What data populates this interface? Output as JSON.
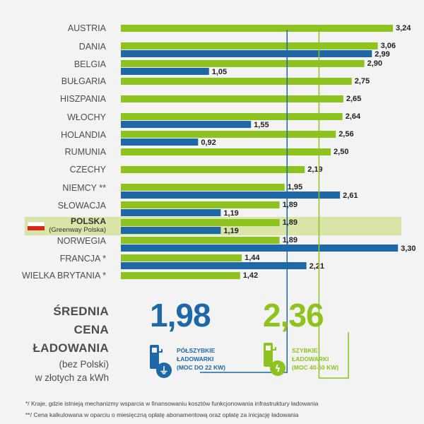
{
  "colors": {
    "fast": "#8dc21f",
    "semi": "#1f68a8",
    "highlight": "#d8e5a6",
    "background": "#f3f3f3",
    "text": "#4d4d4d"
  },
  "chart_data": {
    "type": "bar",
    "orientation": "horizontal",
    "title": "",
    "xlabel": "",
    "ylabel": "",
    "xlim": [
      0,
      3.4
    ],
    "grid": false,
    "legend": "bottom",
    "value_format": "comma-decimal",
    "categories": [
      "AUSTRIA",
      "DANIA",
      "BELGIA",
      "BUŁGARIA",
      "HISZPANIA",
      "WŁOCHY",
      "HOLANDIA",
      "RUMUNIA",
      "CZECHY",
      "NIEMCY **",
      "SŁOWACJA",
      "POLSKA",
      "NORWEGIA",
      "FRANCJA *",
      "WIELKA BRYTANIA *"
    ],
    "highlight_category": "POLSKA",
    "highlight_sublabel": "(Greenway Polska)",
    "series": [
      {
        "name": "SZYBKIE ŁADOWARKI (MOC 40-50 KW)",
        "key": "fast",
        "values": [
          3.24,
          3.06,
          2.9,
          2.75,
          2.65,
          2.64,
          2.56,
          2.5,
          2.19,
          1.95,
          1.89,
          1.89,
          1.89,
          1.44,
          1.42
        ]
      },
      {
        "name": "PÓŁSZYBKIE ŁADOWARKI (MOC DO 22 KW)",
        "key": "semi",
        "values": [
          null,
          2.99,
          1.05,
          null,
          null,
          1.55,
          0.92,
          null,
          null,
          2.61,
          1.19,
          1.19,
          3.3,
          2.21,
          null
        ]
      }
    ],
    "reference_lines": [
      {
        "key": "semi",
        "value": 1.98
      },
      {
        "key": "fast",
        "value": 2.36
      }
    ]
  },
  "averages": {
    "title_line1": "ŚREDNIA",
    "title_line2": "CENA",
    "title_line3": "ŁADOWANIA",
    "title_line4": "(bez Polski)",
    "title_line5": "w złotych za kWh",
    "semi_value": "1,98",
    "semi_label1": "PÓŁSZYBKIE",
    "semi_label2": "ŁADOWARKI",
    "semi_label3": "(MOC DO 22 KW)",
    "fast_value": "2,36",
    "fast_label1": "SZYBKIE",
    "fast_label2": "ŁADOWARKI",
    "fast_label3": "(MOC 40-50 KW)"
  },
  "footnotes": {
    "note1": "*/   Kraje, gdzie istnieją mechanizmy wsparcia  w finansowaniu kosztów funkcjonowania infrastruktury ładowania",
    "note2": "**/ Cena kalkulowana w oparciu o miesięczną opłatę abonamentową oraz opłatę za inicjację ładowania"
  }
}
